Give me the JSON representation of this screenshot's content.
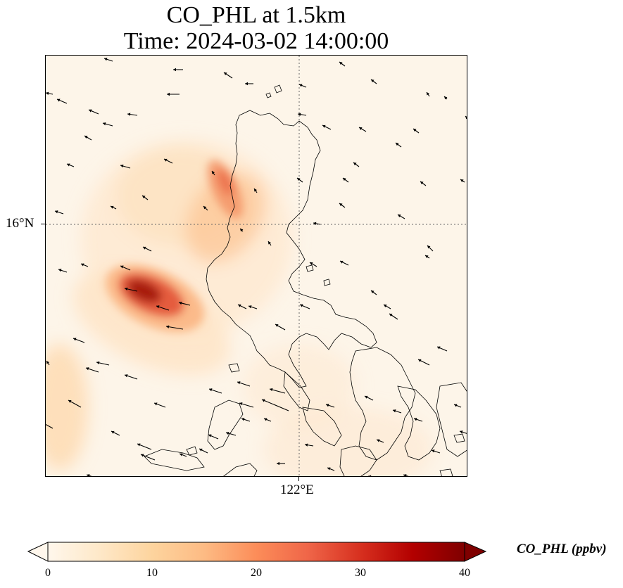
{
  "title_line1": "CO_PHL at 1.5km",
  "title_line2": "Time: 2024-03-02 14:00:00",
  "map": {
    "lat_gridline_label": "16°N",
    "lon_gridline_label": "122°E",
    "field_variable": "CO_PHL",
    "field_units": "ppbv",
    "plume_hotspots": [
      {
        "description": "western sea plume core",
        "approx_value_ppbv": 38
      },
      {
        "description": "northern Luzon coast plume",
        "approx_value_ppbv": 26
      }
    ],
    "wind_vectors": "yes",
    "coastlines": "yes",
    "gridlines": "dotted"
  },
  "colorbar": {
    "label": "CO_PHL (ppbv)",
    "ticks": [
      "0",
      "10",
      "20",
      "30",
      "40"
    ],
    "min": 0,
    "max": 40,
    "extend": "both",
    "colormap": "OrRd",
    "colors": [
      "#fff7ec",
      "#fee8c8",
      "#fdd49e",
      "#fdbb84",
      "#fc8d59",
      "#ef6548",
      "#d7301f",
      "#b30000",
      "#7f0000"
    ]
  }
}
